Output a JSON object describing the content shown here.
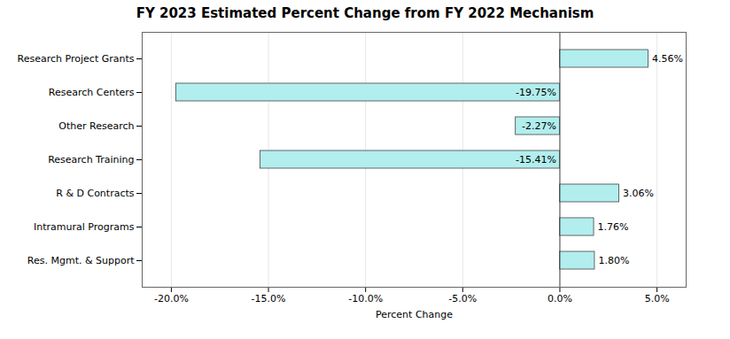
{
  "chart_data": {
    "type": "bar",
    "orientation": "horizontal",
    "title": "FY 2023 Estimated Percent Change from FY 2022 Mechanism",
    "xlabel": "Percent Change",
    "categories": [
      "Res. Mgmt. & Support",
      "Intramural Programs",
      "R & D Contracts",
      "Research Training",
      "Other Research",
      "Research Centers",
      "Research Project Grants"
    ],
    "values": [
      1.8,
      1.76,
      3.06,
      -15.41,
      -2.27,
      -19.75,
      4.56
    ],
    "value_labels": [
      "1.80%",
      "1.76%",
      "3.06%",
      "-15.41%",
      "-2.27%",
      "-19.75%",
      "4.56%"
    ],
    "data_labels": true,
    "color": "#b2eeee",
    "xlim": [
      -21.5,
      6.5
    ],
    "xticks": [
      {
        "value": -20.0,
        "label": "-20.0%"
      },
      {
        "value": -15.0,
        "label": "-15.0%"
      },
      {
        "value": -10.0,
        "label": "-10.0%"
      },
      {
        "value": -5.0,
        "label": "-5.0%"
      },
      {
        "value": 0.0,
        "label": "0.0%"
      },
      {
        "value": 5.0,
        "label": "5.0%"
      }
    ],
    "grid": true
  }
}
